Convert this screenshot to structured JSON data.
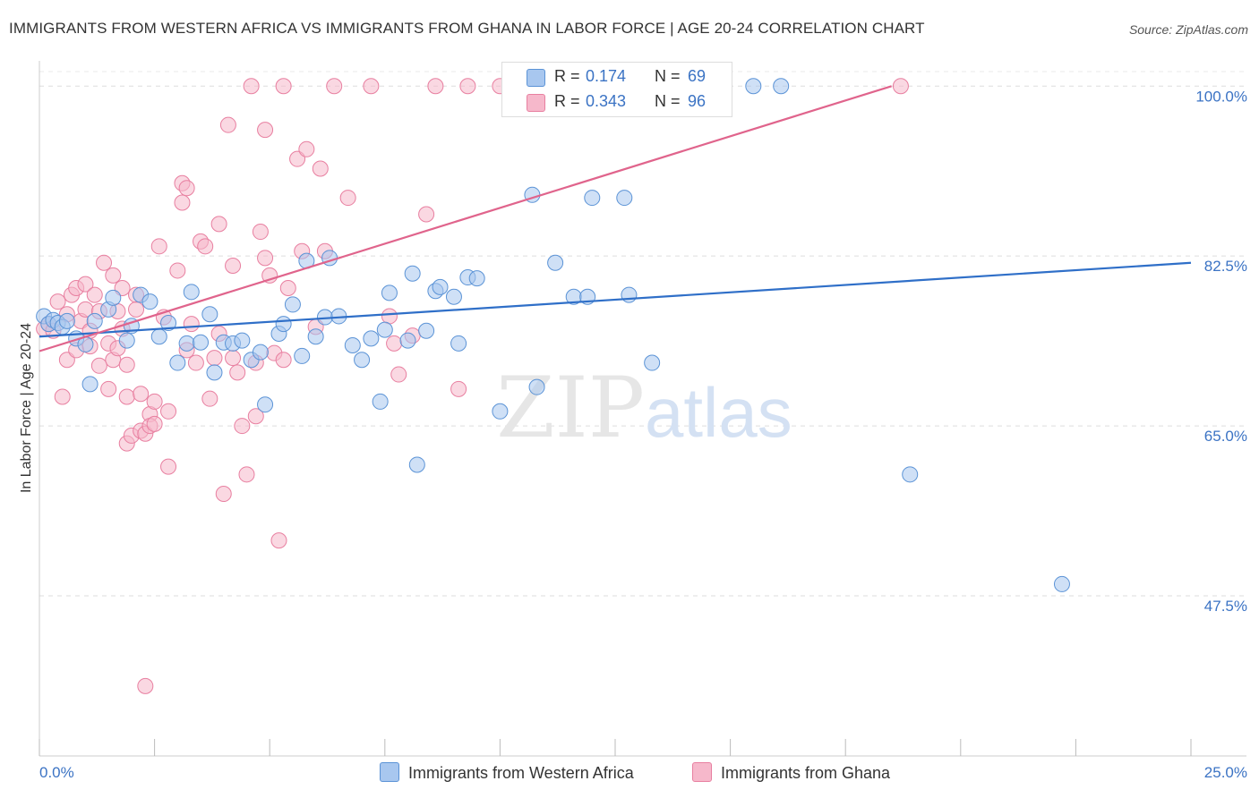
{
  "title": "IMMIGRANTS FROM WESTERN AFRICA VS IMMIGRANTS FROM GHANA IN LABOR FORCE | AGE 20-24 CORRELATION CHART",
  "source": "Source: ZipAtlas.com",
  "watermark": {
    "zip": "ZIP",
    "atlas": "atlas"
  },
  "legend_stats": [
    {
      "r_label": "R =",
      "r_value": "0.174",
      "n_label": "N =",
      "n_value": "69",
      "color": "#a8c7ef"
    },
    {
      "r_label": "R =",
      "r_value": "0.343",
      "n_label": "N =",
      "n_value": "96",
      "color": "#f6b8cb"
    }
  ],
  "legend_series": [
    {
      "label": "Immigrants from Western Africa",
      "color": "#a8c7ef"
    },
    {
      "label": "Immigrants from Ghana",
      "color": "#f6b8cb"
    }
  ],
  "chart_data": {
    "type": "scatter",
    "title": "IMMIGRANTS FROM WESTERN AFRICA VS IMMIGRANTS FROM GHANA IN LABOR FORCE | AGE 20-24 CORRELATION CHART",
    "xlabel": "",
    "ylabel": "In Labor Force | Age 20-24",
    "xlim": [
      0,
      25
    ],
    "ylim": [
      31,
      101.5
    ],
    "x_tick_labels": [
      "0.0%",
      "25.0%"
    ],
    "y_ticks": [
      47.5,
      65.0,
      82.5,
      100.0
    ],
    "y_tick_labels": [
      "47.5%",
      "65.0%",
      "82.5%",
      "100.0%"
    ],
    "grid": true,
    "legend_position": "bottom",
    "series": [
      {
        "name": "Immigrants from Western Africa",
        "color": "#a8c7ef",
        "stroke": "#5b93d6",
        "line_color": "#2f6fc8",
        "trend": {
          "x0": 0.0,
          "y0": 74.2,
          "x1": 25.0,
          "y1": 81.8
        },
        "points": [
          [
            0.1,
            76.3
          ],
          [
            0.2,
            75.5
          ],
          [
            0.3,
            75.9
          ],
          [
            0.4,
            75.6
          ],
          [
            0.5,
            75.2
          ],
          [
            0.6,
            75.8
          ],
          [
            0.8,
            74.0
          ],
          [
            1.0,
            73.4
          ],
          [
            1.1,
            69.3
          ],
          [
            1.2,
            75.8
          ],
          [
            1.5,
            77.0
          ],
          [
            1.6,
            78.2
          ],
          [
            1.9,
            73.8
          ],
          [
            2.0,
            75.3
          ],
          [
            2.2,
            78.5
          ],
          [
            2.4,
            77.8
          ],
          [
            2.6,
            74.2
          ],
          [
            2.8,
            75.6
          ],
          [
            3.0,
            71.5
          ],
          [
            3.2,
            73.5
          ],
          [
            3.3,
            78.8
          ],
          [
            3.5,
            73.6
          ],
          [
            3.7,
            76.5
          ],
          [
            3.8,
            70.5
          ],
          [
            4.0,
            73.6
          ],
          [
            4.2,
            73.5
          ],
          [
            4.4,
            73.8
          ],
          [
            4.6,
            71.8
          ],
          [
            4.8,
            72.6
          ],
          [
            4.9,
            67.2
          ],
          [
            5.2,
            74.5
          ],
          [
            5.3,
            75.5
          ],
          [
            5.5,
            77.5
          ],
          [
            5.7,
            72.2
          ],
          [
            5.8,
            82.0
          ],
          [
            6.0,
            74.2
          ],
          [
            6.2,
            76.2
          ],
          [
            6.3,
            82.3
          ],
          [
            6.5,
            76.3
          ],
          [
            6.8,
            73.3
          ],
          [
            7.0,
            71.8
          ],
          [
            7.2,
            74.0
          ],
          [
            7.4,
            67.5
          ],
          [
            7.5,
            74.9
          ],
          [
            7.6,
            78.7
          ],
          [
            8.0,
            73.8
          ],
          [
            8.1,
            80.7
          ],
          [
            8.2,
            61.0
          ],
          [
            8.4,
            74.8
          ],
          [
            8.6,
            78.9
          ],
          [
            8.7,
            79.3
          ],
          [
            9.0,
            78.3
          ],
          [
            9.1,
            73.5
          ],
          [
            9.3,
            80.3
          ],
          [
            9.5,
            80.2
          ],
          [
            10.0,
            66.5
          ],
          [
            10.7,
            88.8
          ],
          [
            10.8,
            69.0
          ],
          [
            11.2,
            81.8
          ],
          [
            11.6,
            78.3
          ],
          [
            11.9,
            78.3
          ],
          [
            12.0,
            88.5
          ],
          [
            12.7,
            88.5
          ],
          [
            12.8,
            78.5
          ],
          [
            13.3,
            71.5
          ],
          [
            15.5,
            100.0
          ],
          [
            16.1,
            100.0
          ],
          [
            18.9,
            60.0
          ],
          [
            22.2,
            48.7
          ]
        ]
      },
      {
        "name": "Immigrants from Ghana",
        "color": "#f6b8cb",
        "stroke": "#e87fa0",
        "line_color": "#e0648c",
        "trend": {
          "x0": 0.0,
          "y0": 72.7,
          "x1": 18.5,
          "y1": 100.0
        },
        "points": [
          [
            0.1,
            75.0
          ],
          [
            0.2,
            75.5
          ],
          [
            0.3,
            74.8
          ],
          [
            0.4,
            77.8
          ],
          [
            0.5,
            68.0
          ],
          [
            0.6,
            76.5
          ],
          [
            0.6,
            71.8
          ],
          [
            0.7,
            78.5
          ],
          [
            0.8,
            79.2
          ],
          [
            0.8,
            72.8
          ],
          [
            0.9,
            75.8
          ],
          [
            1.0,
            79.6
          ],
          [
            1.0,
            77.0
          ],
          [
            1.1,
            74.8
          ],
          [
            1.1,
            73.2
          ],
          [
            1.2,
            78.5
          ],
          [
            1.3,
            76.8
          ],
          [
            1.3,
            71.2
          ],
          [
            1.4,
            81.8
          ],
          [
            1.5,
            73.5
          ],
          [
            1.5,
            68.8
          ],
          [
            1.6,
            71.8
          ],
          [
            1.6,
            80.5
          ],
          [
            1.7,
            76.8
          ],
          [
            1.7,
            73.0
          ],
          [
            1.8,
            79.2
          ],
          [
            1.8,
            75.0
          ],
          [
            1.9,
            71.3
          ],
          [
            1.9,
            68.0
          ],
          [
            1.9,
            63.2
          ],
          [
            2.0,
            64.0
          ],
          [
            2.1,
            78.5
          ],
          [
            2.1,
            77.0
          ],
          [
            2.2,
            68.3
          ],
          [
            2.2,
            64.5
          ],
          [
            2.3,
            64.2
          ],
          [
            2.3,
            38.2
          ],
          [
            2.4,
            66.2
          ],
          [
            2.4,
            65.0
          ],
          [
            2.5,
            65.2
          ],
          [
            2.5,
            67.5
          ],
          [
            2.6,
            83.5
          ],
          [
            2.7,
            76.2
          ],
          [
            2.8,
            66.5
          ],
          [
            2.8,
            60.8
          ],
          [
            3.0,
            81.0
          ],
          [
            3.1,
            90.0
          ],
          [
            3.1,
            88.0
          ],
          [
            3.2,
            89.5
          ],
          [
            3.2,
            72.8
          ],
          [
            3.3,
            75.5
          ],
          [
            3.4,
            71.5
          ],
          [
            3.5,
            84.0
          ],
          [
            3.6,
            83.5
          ],
          [
            3.7,
            67.8
          ],
          [
            3.8,
            72.0
          ],
          [
            3.9,
            85.8
          ],
          [
            3.9,
            74.5
          ],
          [
            4.0,
            58.0
          ],
          [
            4.1,
            96.0
          ],
          [
            4.2,
            72.0
          ],
          [
            4.2,
            81.5
          ],
          [
            4.3,
            70.5
          ],
          [
            4.4,
            65.0
          ],
          [
            4.5,
            60.0
          ],
          [
            4.6,
            100.0
          ],
          [
            4.7,
            71.5
          ],
          [
            4.7,
            66.0
          ],
          [
            4.8,
            85.0
          ],
          [
            4.9,
            95.5
          ],
          [
            4.9,
            82.3
          ],
          [
            5.0,
            80.5
          ],
          [
            5.1,
            72.5
          ],
          [
            5.2,
            53.2
          ],
          [
            5.3,
            100.0
          ],
          [
            5.3,
            71.8
          ],
          [
            5.4,
            79.2
          ],
          [
            5.6,
            92.5
          ],
          [
            5.7,
            83.0
          ],
          [
            5.8,
            93.5
          ],
          [
            6.0,
            75.2
          ],
          [
            6.1,
            91.5
          ],
          [
            6.2,
            83.0
          ],
          [
            6.4,
            100.0
          ],
          [
            6.7,
            88.5
          ],
          [
            7.2,
            100.0
          ],
          [
            7.6,
            76.3
          ],
          [
            7.7,
            73.5
          ],
          [
            7.8,
            70.3
          ],
          [
            8.1,
            74.3
          ],
          [
            8.4,
            86.8
          ],
          [
            8.6,
            100.0
          ],
          [
            9.1,
            68.8
          ],
          [
            9.3,
            100.0
          ],
          [
            10.0,
            100.0
          ],
          [
            18.7,
            100.0
          ]
        ]
      }
    ]
  }
}
